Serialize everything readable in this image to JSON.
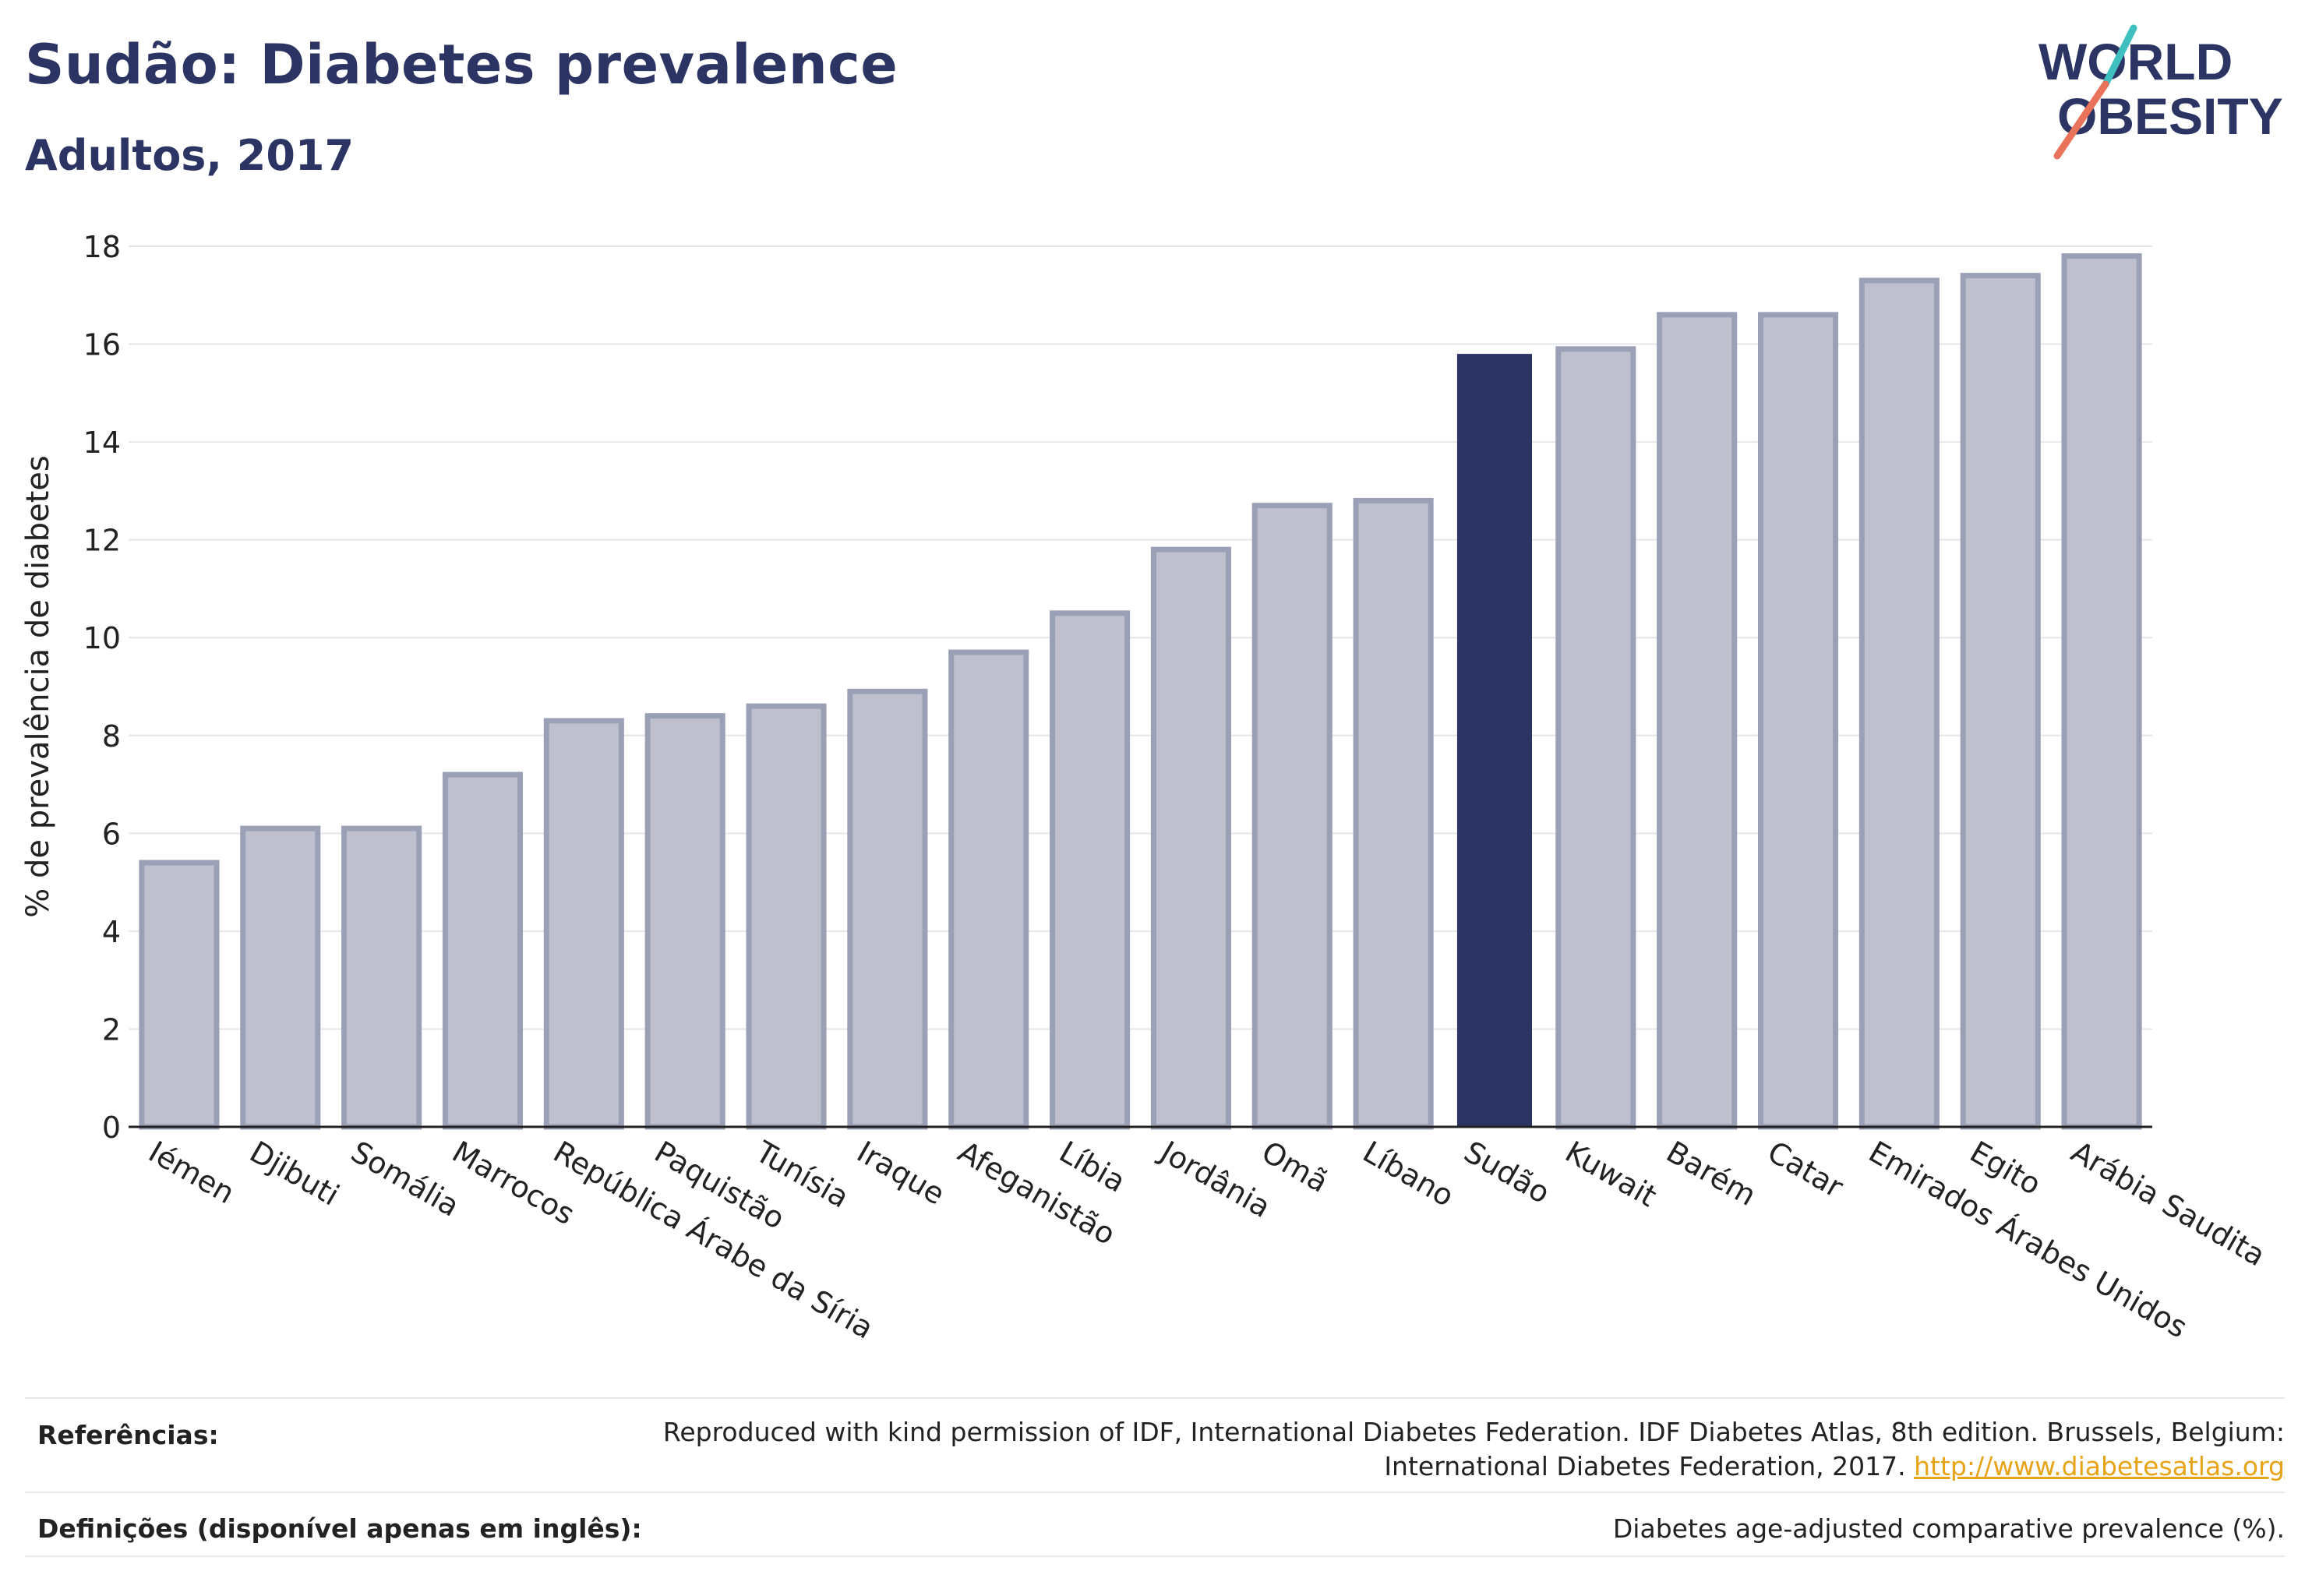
{
  "header": {
    "title": "Sudão: Diabetes prevalence",
    "subtitle": "Adultos, 2017"
  },
  "logo": {
    "line1": "WORLD",
    "line2": "OBESITY",
    "slash_colors": [
      "#3fbfbf",
      "#e8735a"
    ],
    "text_color": "#2b3462"
  },
  "chart_data": {
    "type": "bar",
    "categories": [
      "Iémen",
      "Djibuti",
      "Somália",
      "Marrocos",
      "República Árabe da Síria",
      "Paquistão",
      "Tunísia",
      "Iraque",
      "Afeganistão",
      "Líbia",
      "Jordânia",
      "Omã",
      "Líbano",
      "Sudão",
      "Kuwait",
      "Barém",
      "Catar",
      "Emirados Árabes Unidos",
      "Egito",
      "Arábia Saudita"
    ],
    "values": [
      5.4,
      6.1,
      6.1,
      7.2,
      8.3,
      8.4,
      8.6,
      8.9,
      9.7,
      10.5,
      11.8,
      12.7,
      12.8,
      15.8,
      15.9,
      16.6,
      16.6,
      17.3,
      17.4,
      17.8
    ],
    "highlight": "Sudão",
    "ylabel": "% de prevalência de diabetes",
    "ylim": [
      0,
      18
    ],
    "yticks": [
      0,
      2,
      4,
      6,
      8,
      10,
      12,
      14,
      16,
      18
    ],
    "grid": true,
    "colors": {
      "bar": "#bec1cd",
      "bar_border": "#9aa0b6",
      "highlight": "#2b3462",
      "grid": "#e6e6ea",
      "axis": "#222222"
    }
  },
  "footer": {
    "references_label": "Referências:",
    "references_line1": "Reproduced with kind permission of IDF, International Diabetes Federation. IDF Diabetes Atlas, 8th edition. Brussels, Belgium:",
    "references_line2": "International Diabetes Federation, 2017.",
    "references_link": "http://www.diabetesatlas.org",
    "definitions_label": "Definições (disponível apenas em inglês):",
    "definitions_text": "Diabetes age-adjusted comparative prevalence (%)."
  }
}
